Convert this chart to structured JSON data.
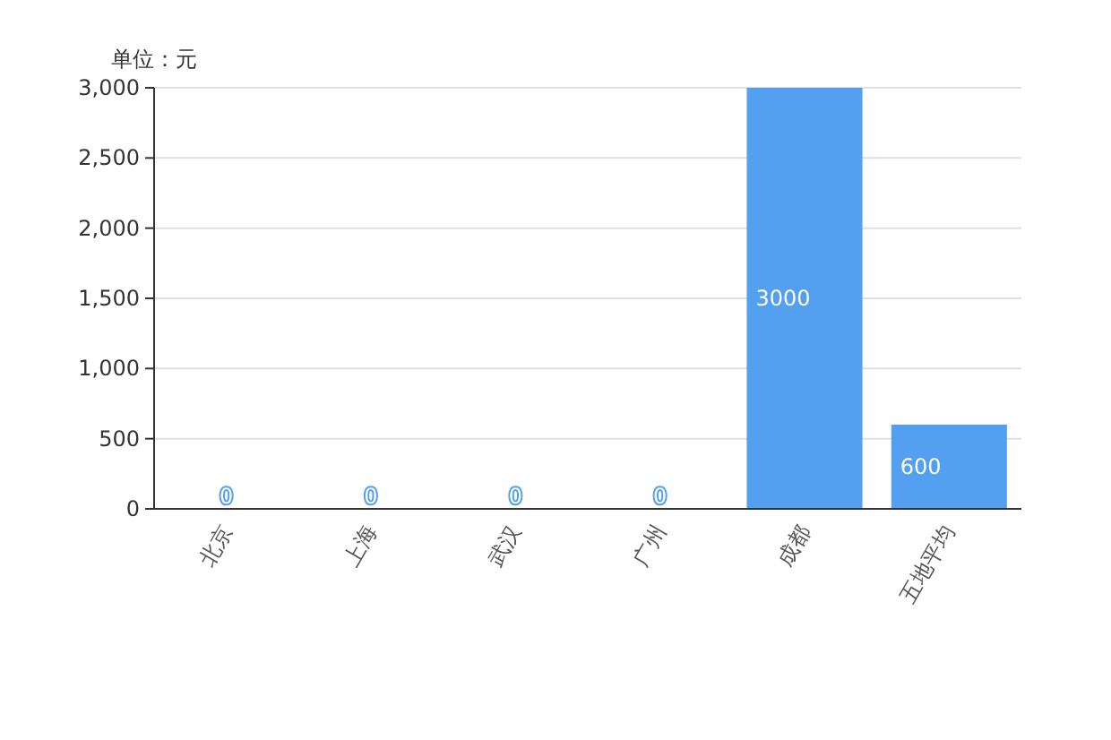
{
  "chart_data": {
    "type": "bar",
    "ylabel": "单位：元",
    "categories": [
      "北京",
      "上海",
      "武汉",
      "广州",
      "成都",
      "五地平均"
    ],
    "series": [
      {
        "color": "#539ff0",
        "values": [
          0,
          0,
          0,
          0,
          3000,
          600
        ]
      }
    ],
    "ylim": [
      0,
      3000
    ],
    "yticks": [
      0,
      500,
      {
        "value": 1000,
        "label": "1,000"
      },
      {
        "value": 1500,
        "label": "1,500"
      },
      {
        "value": 2000,
        "label": "2,000"
      },
      {
        "value": 2500,
        "label": "2,500"
      },
      {
        "value": 3000,
        "label": "3,000"
      }
    ],
    "grid": "y",
    "data_labels": true
  }
}
